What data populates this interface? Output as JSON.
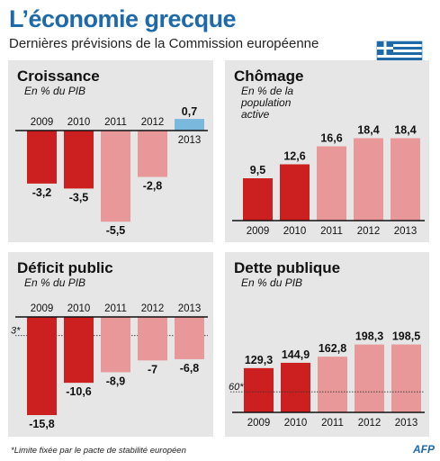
{
  "header": {
    "title": "L’économie grecque",
    "subtitle": "Dernières prévisions de la Commission européenne"
  },
  "footnote": "*Limite fixée par le pacte de stabilité européen",
  "source": "AFP",
  "colors": {
    "dark_red": "#cc1f1f",
    "light_red": "#e89898",
    "blue": "#7ab8de",
    "panel_bg": "#e6e6e6",
    "title_blue": "#1e6aa8"
  },
  "chart_data": [
    {
      "type": "bar",
      "title": "Croissance",
      "ylabel": "En % du PIB",
      "categories": [
        "2009",
        "2010",
        "2011",
        "2012",
        "2013"
      ],
      "values": [
        -3.2,
        -3.5,
        -5.5,
        -2.8,
        0.7
      ],
      "labels": [
        "-3,2",
        "-3,5",
        "-5,5",
        "-2,8",
        "0,7"
      ],
      "bar_colors": [
        "dark_red",
        "dark_red",
        "light_red",
        "light_red",
        "blue"
      ]
    },
    {
      "type": "bar",
      "title": "Chômage",
      "ylabel": "En % de la population active",
      "categories": [
        "2009",
        "2010",
        "2011",
        "2012",
        "2013"
      ],
      "values": [
        9.5,
        12.6,
        16.6,
        18.4,
        18.4
      ],
      "labels": [
        "9,5",
        "12,6",
        "16,6",
        "18,4",
        "18,4"
      ],
      "bar_colors": [
        "dark_red",
        "dark_red",
        "light_red",
        "light_red",
        "light_red"
      ]
    },
    {
      "type": "bar",
      "title": "Déficit public",
      "ylabel": "En % du PIB",
      "categories": [
        "2009",
        "2010",
        "2011",
        "2012",
        "2013"
      ],
      "values": [
        -15.8,
        -10.6,
        -8.9,
        -7,
        -6.8
      ],
      "labels": [
        "-15,8",
        "-10,6",
        "-8,9",
        "-7",
        "-6,8"
      ],
      "bar_colors": [
        "dark_red",
        "dark_red",
        "light_red",
        "light_red",
        "light_red"
      ],
      "reference_line": {
        "value": -3,
        "label": "3*"
      }
    },
    {
      "type": "bar",
      "title": "Dette publique",
      "ylabel": "En % du PIB",
      "categories": [
        "2009",
        "2010",
        "2011",
        "2012",
        "2013"
      ],
      "values": [
        129.3,
        144.9,
        162.8,
        198.3,
        198.5
      ],
      "labels": [
        "129,3",
        "144,9",
        "162,8",
        "198,3",
        "198,5"
      ],
      "bar_colors": [
        "dark_red",
        "dark_red",
        "light_red",
        "light_red",
        "light_red"
      ],
      "reference_line": {
        "value": 60,
        "label": "60*"
      }
    }
  ]
}
